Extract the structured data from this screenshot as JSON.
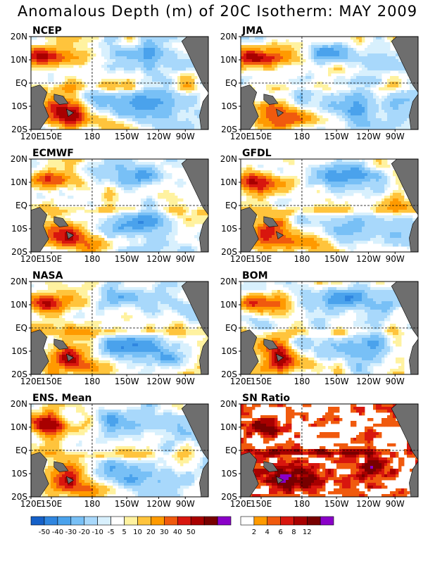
{
  "title": "Anomalous Depth (m) of 20C Isotherm: MAY 2009",
  "chart_data": [
    {
      "type": "heatmap",
      "title": "NCEP"
    },
    {
      "type": "heatmap",
      "title": "JMA"
    },
    {
      "type": "heatmap",
      "title": "ECMWF"
    },
    {
      "type": "heatmap",
      "title": "GFDL"
    },
    {
      "type": "heatmap",
      "title": "NASA"
    },
    {
      "type": "heatmap",
      "title": "BOM"
    },
    {
      "type": "heatmap",
      "title": "ENS. Mean"
    },
    {
      "type": "heatmap",
      "title": "SN Ratio"
    }
  ],
  "axes": {
    "y_ticks": [
      "20N",
      "10N",
      "EQ",
      "10S",
      "20S"
    ],
    "x_ticks": [
      "120E",
      "150E",
      "180",
      "150W",
      "120W",
      "90W"
    ]
  },
  "colorbars": {
    "anomaly": {
      "colors": [
        "#1560c8",
        "#2f86e0",
        "#4aa2ec",
        "#78c0f6",
        "#a8d8fb",
        "#d8f0fd",
        "#ffffff",
        "#fff2a0",
        "#ffc43c",
        "#ff9a00",
        "#f05a0e",
        "#d8160e",
        "#a80000",
        "#780000",
        "#8a00c8"
      ],
      "labels": [
        "-50",
        "-40",
        "-30",
        "-20",
        "-10",
        "-5",
        "5",
        "10",
        "20",
        "30",
        "40",
        "50"
      ]
    },
    "sn": {
      "colors": [
        "#ffffff",
        "#ff9a00",
        "#f05a0e",
        "#d8160e",
        "#a80000",
        "#780000",
        "#8a00c8"
      ],
      "labels": [
        "2",
        "4",
        "6",
        "8",
        "12"
      ]
    }
  }
}
